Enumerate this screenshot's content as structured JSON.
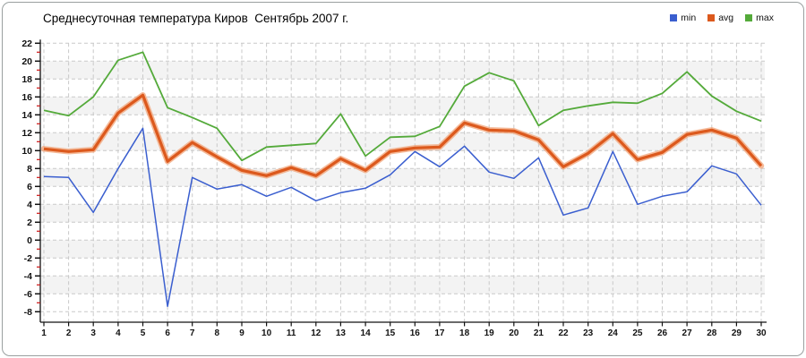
{
  "chart_data": {
    "type": "line",
    "title": "Среднесуточная температура Киров  Сентябрь 2007 г.",
    "xlabel": "",
    "ylabel": "",
    "categories": [
      "1",
      "2",
      "3",
      "4",
      "5",
      "6",
      "7",
      "8",
      "9",
      "10",
      "11",
      "12",
      "13",
      "14",
      "15",
      "16",
      "17",
      "18",
      "19",
      "20",
      "21",
      "22",
      "23",
      "24",
      "25",
      "26",
      "27",
      "28",
      "29",
      "30"
    ],
    "ylim": [
      -8,
      22
    ],
    "yticks": [
      "22",
      "20",
      "18",
      "16",
      "14",
      "12",
      "10",
      "8",
      "6",
      "4",
      "2",
      "0",
      "-2",
      "-4",
      "-6",
      "-8"
    ],
    "ytick_minor_step": 1,
    "grid": "dashed-both-axes",
    "legend_position": "top-right",
    "series": [
      {
        "name": "min",
        "color": "#3a5ecf",
        "values": [
          7.1,
          7.0,
          3.1,
          8.0,
          12.5,
          -7.4,
          7.0,
          5.7,
          6.2,
          4.9,
          5.9,
          4.4,
          5.3,
          5.8,
          7.3,
          9.9,
          8.2,
          10.5,
          7.6,
          6.9,
          9.2,
          2.8,
          3.6,
          9.9,
          4.0,
          4.9,
          5.4,
          8.3,
          7.4,
          3.9
        ]
      },
      {
        "name": "avg",
        "color": "#dc591d",
        "halo_color": "#f2a377",
        "values": [
          10.2,
          9.9,
          10.1,
          14.2,
          16.2,
          8.8,
          10.9,
          9.3,
          7.8,
          7.2,
          8.1,
          7.2,
          9.1,
          7.8,
          9.9,
          10.3,
          10.4,
          13.1,
          12.3,
          12.2,
          11.2,
          8.2,
          9.7,
          11.9,
          9.0,
          9.8,
          11.8,
          12.3,
          11.4,
          8.3
        ]
      },
      {
        "name": "max",
        "color": "#54aa3a",
        "values": [
          14.5,
          13.9,
          16.0,
          20.1,
          21.0,
          14.8,
          13.7,
          12.5,
          8.9,
          10.4,
          10.6,
          10.8,
          14.1,
          9.4,
          11.5,
          11.6,
          12.7,
          17.2,
          18.7,
          17.8,
          12.8,
          14.5,
          15.0,
          15.4,
          15.3,
          16.4,
          18.8,
          16.1,
          14.4,
          13.3
        ]
      }
    ],
    "colors": {
      "grid": "#c9c9c9",
      "stripe": "#f3f3f3",
      "axis": "#111111",
      "minor_tick": "#cc1111"
    }
  }
}
